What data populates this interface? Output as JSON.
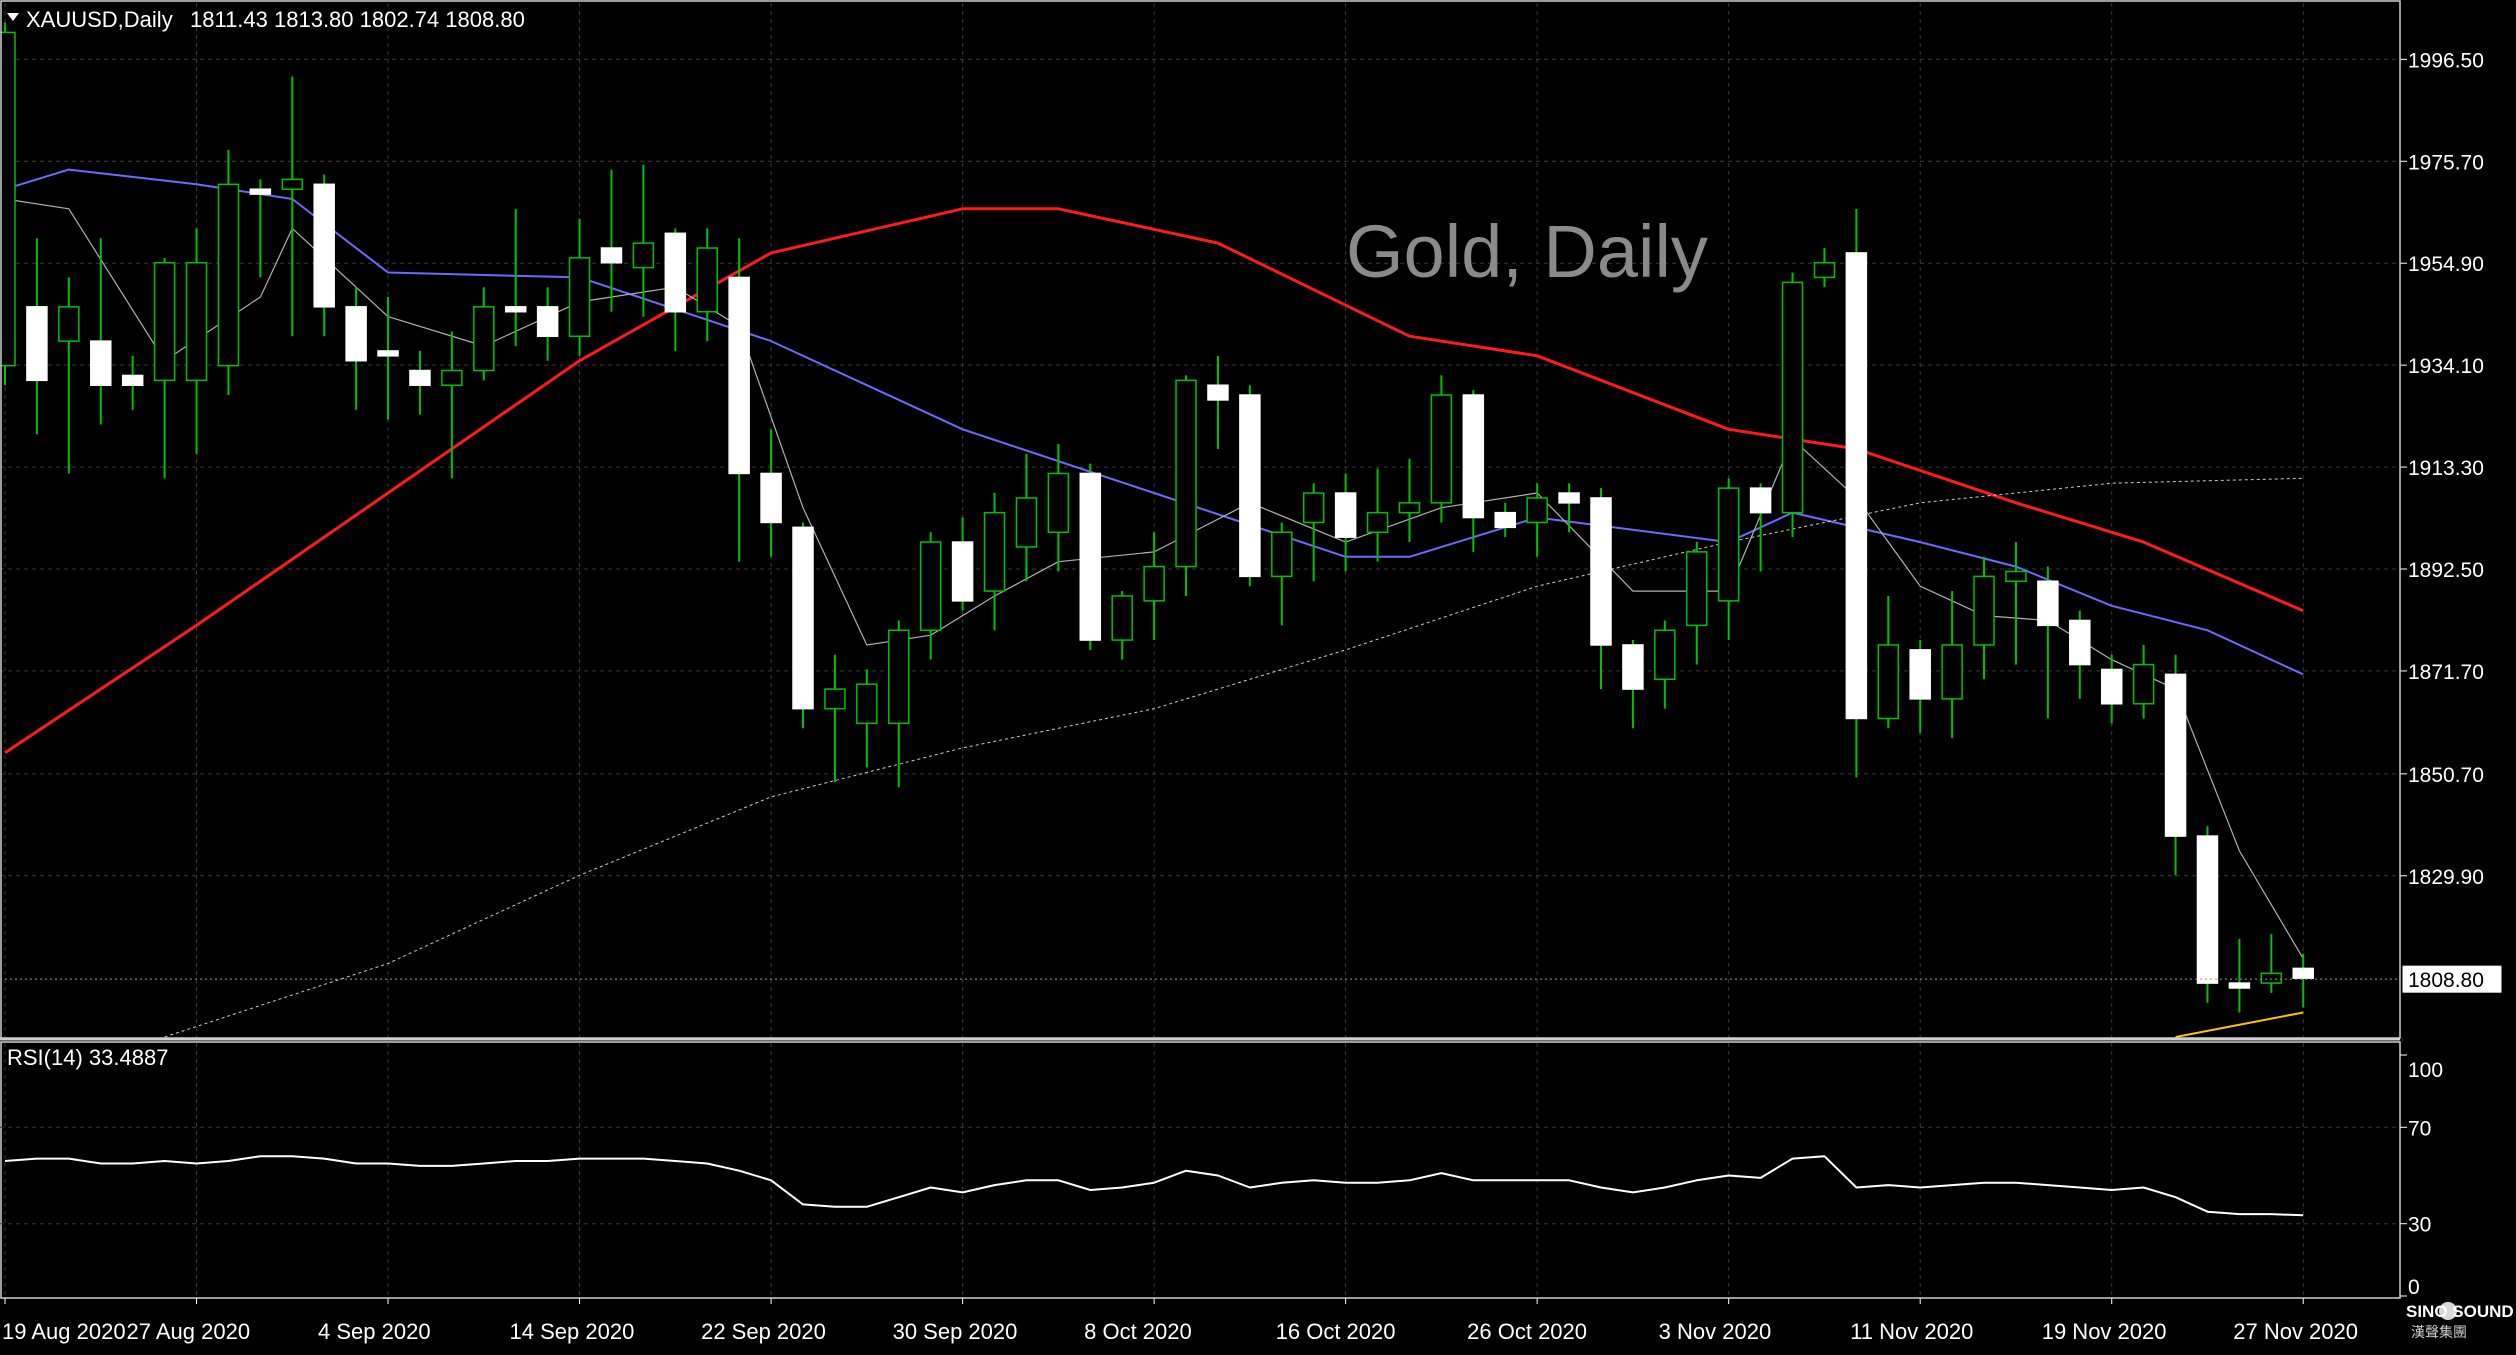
{
  "header": {
    "symbol": "XAUUSD,Daily",
    "ohlc": "1811.43 1813.80 1802.74 1808.80",
    "watermark": "Gold, Daily"
  },
  "rsi": {
    "label": "RSI(14) 33.4887",
    "levels": [
      "100",
      "70",
      "30",
      "0"
    ]
  },
  "brand": {
    "logo_text": "SINO SOUND",
    "logo_subtext": "漢聲集團"
  },
  "colors": {
    "background": "#000000",
    "grid": "#3a3a3a",
    "bull_candle": "#000000",
    "bear_candle": "#ffffff",
    "wick": "#00c000",
    "ma_red": "#ff1a1a",
    "ma_blue": "#6a6aff",
    "ma_thin": "#b0b0b0",
    "ma_long": "#cccccc",
    "ma_yellow": "#ffc000",
    "rsi_line": "#ffffff",
    "text": "#ffffff"
  },
  "chart_data": {
    "type": "candlestick",
    "price_range": [
      1797,
      2008
    ],
    "price_ticks": [
      "1996.50",
      "1975.70",
      "1954.90",
      "1934.10",
      "1913.30",
      "1892.50",
      "1871.70",
      "1850.70",
      "1829.90"
    ],
    "current_price": "1808.80",
    "x_ticks": [
      {
        "index": 0,
        "label": "19 Aug 2020"
      },
      {
        "index": 6,
        "label": "27 Aug 2020"
      },
      {
        "index": 12,
        "label": "4 Sep 2020"
      },
      {
        "index": 18,
        "label": "14 Sep 2020"
      },
      {
        "index": 24,
        "label": "22 Sep 2020"
      },
      {
        "index": 30,
        "label": "30 Sep 2020"
      },
      {
        "index": 36,
        "label": "8 Oct 2020"
      },
      {
        "index": 42,
        "label": "16 Oct 2020"
      },
      {
        "index": 48,
        "label": "26 Oct 2020"
      },
      {
        "index": 54,
        "label": "3 Nov 2020"
      },
      {
        "index": 60,
        "label": "11 Nov 2020"
      },
      {
        "index": 66,
        "label": "19 Nov 2020"
      },
      {
        "index": 72,
        "label": "27 Nov 2020"
      }
    ],
    "candles": [
      [
        1934,
        2002,
        1930,
        2004
      ],
      [
        1946,
        1931,
        1920,
        1960
      ],
      [
        1939,
        1946,
        1912,
        1952
      ],
      [
        1939,
        1930,
        1922,
        1960
      ],
      [
        1932,
        1930,
        1925,
        1936
      ],
      [
        1931,
        1955,
        1911,
        1956
      ],
      [
        1931,
        1955,
        1916,
        1962
      ],
      [
        1934,
        1971,
        1928,
        1978
      ],
      [
        1970,
        1969,
        1952,
        1972
      ],
      [
        1970,
        1972,
        1940,
        1993
      ],
      [
        1971,
        1946,
        1940,
        1973
      ],
      [
        1946,
        1935,
        1925,
        1950
      ],
      [
        1937,
        1936,
        1923,
        1948
      ],
      [
        1933,
        1930,
        1924,
        1937
      ],
      [
        1930,
        1933,
        1911,
        1941
      ],
      [
        1933,
        1946,
        1931,
        1950
      ],
      [
        1946,
        1945,
        1938,
        1966
      ],
      [
        1946,
        1940,
        1935,
        1950
      ],
      [
        1940,
        1956,
        1936,
        1964
      ],
      [
        1958,
        1955,
        1945,
        1974
      ],
      [
        1954,
        1959,
        1944,
        1975
      ],
      [
        1961,
        1945,
        1937,
        1962
      ],
      [
        1945,
        1958,
        1939,
        1962
      ],
      [
        1952,
        1912,
        1894,
        1960
      ],
      [
        1912,
        1902,
        1895,
        1921
      ],
      [
        1901,
        1864,
        1860,
        1902
      ],
      [
        1864,
        1868,
        1849,
        1875
      ],
      [
        1861,
        1869,
        1852,
        1872
      ],
      [
        1861,
        1880,
        1848,
        1882
      ],
      [
        1880,
        1898,
        1874,
        1900
      ],
      [
        1898,
        1886,
        1884,
        1903
      ],
      [
        1888,
        1904,
        1880,
        1908
      ],
      [
        1897,
        1907,
        1890,
        1916
      ],
      [
        1900,
        1912,
        1892,
        1918
      ],
      [
        1912,
        1878,
        1876,
        1914
      ],
      [
        1878,
        1887,
        1874,
        1888
      ],
      [
        1886,
        1893,
        1878,
        1900
      ],
      [
        1893,
        1931,
        1887,
        1932
      ],
      [
        1930,
        1927,
        1917,
        1936
      ],
      [
        1928,
        1891,
        1889,
        1930
      ],
      [
        1891,
        1900,
        1881,
        1902
      ],
      [
        1902,
        1908,
        1890,
        1910
      ],
      [
        1908,
        1899,
        1892,
        1912
      ],
      [
        1900,
        1904,
        1894,
        1913
      ],
      [
        1904,
        1906,
        1898,
        1915
      ],
      [
        1906,
        1928,
        1902,
        1932
      ],
      [
        1928,
        1903,
        1896,
        1929
      ],
      [
        1904,
        1901,
        1899,
        1906
      ],
      [
        1902,
        1907,
        1895,
        1910
      ],
      [
        1908,
        1906,
        1900,
        1910
      ],
      [
        1907,
        1877,
        1868,
        1909
      ],
      [
        1877,
        1868,
        1860,
        1878
      ],
      [
        1870,
        1880,
        1864,
        1882
      ],
      [
        1881,
        1896,
        1873,
        1898
      ],
      [
        1886,
        1909,
        1878,
        1911
      ],
      [
        1909,
        1904,
        1892,
        1910
      ],
      [
        1904,
        1951,
        1899,
        1953
      ],
      [
        1952,
        1955,
        1950,
        1958
      ],
      [
        1957,
        1862,
        1850,
        1966
      ],
      [
        1862,
        1877,
        1860,
        1887
      ],
      [
        1876,
        1866,
        1859,
        1878
      ],
      [
        1866,
        1877,
        1858,
        1888
      ],
      [
        1877,
        1891,
        1870,
        1895
      ],
      [
        1890,
        1892,
        1873,
        1898
      ],
      [
        1890,
        1881,
        1862,
        1893
      ],
      [
        1882,
        1873,
        1866,
        1884
      ],
      [
        1872,
        1865,
        1861,
        1875
      ],
      [
        1865,
        1873,
        1862,
        1877
      ],
      [
        1871,
        1838,
        1830,
        1875
      ],
      [
        1838,
        1808,
        1804,
        1840
      ],
      [
        1808,
        1807,
        1802,
        1817
      ],
      [
        1808,
        1810,
        1806,
        1818
      ],
      [
        1811,
        1809,
        1803,
        1814
      ]
    ],
    "moving_averages": [
      {
        "color": "#ff1a1a",
        "width": 3,
        "values": [
          [
            0,
            1855
          ],
          [
            6,
            1881
          ],
          [
            12,
            1908
          ],
          [
            18,
            1935
          ],
          [
            24,
            1957
          ],
          [
            30,
            1966
          ],
          [
            33,
            1966
          ],
          [
            38,
            1959
          ],
          [
            44,
            1940
          ],
          [
            48,
            1936
          ],
          [
            54,
            1921
          ],
          [
            58,
            1917
          ],
          [
            63,
            1906
          ],
          [
            67,
            1898
          ],
          [
            72,
            1884
          ]
        ]
      },
      {
        "color": "#6a6aff",
        "width": 2,
        "values": [
          [
            0,
            1970
          ],
          [
            2,
            1974
          ],
          [
            6,
            1971
          ],
          [
            9,
            1968
          ],
          [
            12,
            1953
          ],
          [
            18,
            1952
          ],
          [
            24,
            1939
          ],
          [
            30,
            1921
          ],
          [
            36,
            1908
          ],
          [
            42,
            1895
          ],
          [
            44,
            1895
          ],
          [
            48,
            1903
          ],
          [
            54,
            1898
          ],
          [
            56,
            1904
          ],
          [
            60,
            1898
          ],
          [
            63,
            1893
          ],
          [
            66,
            1885
          ],
          [
            69,
            1880
          ],
          [
            72,
            1871
          ]
        ]
      },
      {
        "color": "#b0b0b0",
        "width": 1.2,
        "values": [
          [
            0,
            1968
          ],
          [
            2,
            1966
          ],
          [
            5,
            1935
          ],
          [
            8,
            1948
          ],
          [
            9,
            1962
          ],
          [
            12,
            1944
          ],
          [
            15,
            1938
          ],
          [
            18,
            1947
          ],
          [
            21,
            1950
          ],
          [
            23,
            1942
          ],
          [
            25,
            1905
          ],
          [
            27,
            1877
          ],
          [
            29,
            1879
          ],
          [
            31,
            1887
          ],
          [
            33,
            1894
          ],
          [
            36,
            1896
          ],
          [
            39,
            1906
          ],
          [
            42,
            1898
          ],
          [
            45,
            1905
          ],
          [
            48,
            1908
          ],
          [
            51,
            1888
          ],
          [
            54,
            1888
          ],
          [
            56,
            1919
          ],
          [
            58,
            1907
          ],
          [
            60,
            1889
          ],
          [
            62,
            1883
          ],
          [
            64,
            1882
          ],
          [
            66,
            1874
          ],
          [
            68,
            1868
          ],
          [
            70,
            1835
          ],
          [
            72,
            1813
          ]
        ]
      },
      {
        "color": "#cccccc",
        "width": 1,
        "dash": "3,3",
        "values": [
          [
            5,
            1797
          ],
          [
            12,
            1812
          ],
          [
            18,
            1830
          ],
          [
            24,
            1846
          ],
          [
            30,
            1856
          ],
          [
            36,
            1864
          ],
          [
            42,
            1876
          ],
          [
            48,
            1889
          ],
          [
            54,
            1898
          ],
          [
            60,
            1906
          ],
          [
            66,
            1910
          ],
          [
            72,
            1911
          ]
        ]
      },
      {
        "color": "#ffc000",
        "width": 2,
        "values": [
          [
            68,
            1797
          ],
          [
            72,
            1802
          ]
        ]
      }
    ],
    "rsi_values": [
      56,
      57,
      57,
      55,
      55,
      56,
      55,
      56,
      58,
      58,
      57,
      55,
      55,
      54,
      54,
      55,
      56,
      56,
      57,
      57,
      57,
      56,
      55,
      52,
      48,
      38,
      37,
      37,
      41,
      45,
      43,
      46,
      48,
      48,
      44,
      45,
      47,
      52,
      50,
      45,
      47,
      48,
      47,
      47,
      48,
      51,
      48,
      48,
      48,
      48,
      45,
      43,
      45,
      48,
      50,
      49,
      57,
      58,
      45,
      46,
      45,
      46,
      47,
      47,
      46,
      45,
      44,
      45,
      41,
      35,
      34,
      34,
      33.4887
    ]
  }
}
